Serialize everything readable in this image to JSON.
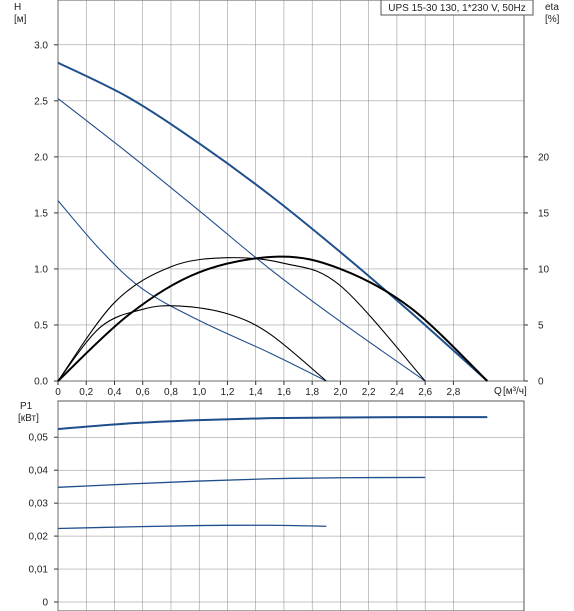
{
  "chart_data": [
    {
      "type": "line",
      "title": "UPS 15-30 130, 1*230 V, 50Hz",
      "ylabel": "H",
      "yunit": "[м]",
      "y2label": "eta",
      "y2unit": "[%]",
      "xlabel": "Q",
      "xunit": "[м³/ч]",
      "xlim": [
        0,
        3.3
      ],
      "ylim": [
        0,
        3.4
      ],
      "y2lim": [
        0,
        34
      ],
      "grid": true,
      "x_ticks": [
        "0",
        "0,2",
        "0,4",
        "0,6",
        "0,8",
        "1,0",
        "1,2",
        "1,4",
        "1,6",
        "1,8",
        "2,0",
        "2,2",
        "2,4",
        "2,6",
        "2,8"
      ],
      "y_ticks": [
        "0.0",
        "0.5",
        "1.0",
        "1.5",
        "2.0",
        "2.5",
        "3.0"
      ],
      "y2_ticks": [
        "0",
        "5",
        "10",
        "15",
        "20"
      ],
      "head_curves": [
        {
          "speed": 3,
          "x": [
            0,
            0.5,
            1.0,
            1.5,
            2.0,
            2.5,
            3.04
          ],
          "y": [
            2.84,
            2.53,
            2.12,
            1.66,
            1.15,
            0.61,
            0.0
          ]
        },
        {
          "speed": 2,
          "x": [
            0,
            0.5,
            1.0,
            1.5,
            2.0,
            2.6
          ],
          "y": [
            2.52,
            2.03,
            1.52,
            1.0,
            0.53,
            0.0
          ]
        },
        {
          "speed": 1,
          "x": [
            0,
            0.3,
            0.6,
            1.0,
            1.5,
            1.9
          ],
          "y": [
            1.61,
            1.17,
            0.82,
            0.54,
            0.25,
            0.0
          ]
        }
      ],
      "eta_curves": [
        {
          "speed": 3,
          "x": [
            0,
            0.5,
            1.0,
            1.56,
            2.0,
            2.5,
            3.04
          ],
          "y": [
            0,
            5.9,
            9.7,
            11.1,
            10.0,
            6.5,
            0
          ]
        },
        {
          "speed": 2,
          "x": [
            0,
            0.4,
            0.8,
            1.2,
            1.6,
            2.0,
            2.6
          ],
          "y": [
            0,
            7.0,
            10.2,
            11.0,
            10.5,
            8.5,
            0
          ]
        },
        {
          "speed": 1,
          "x": [
            0,
            0.3,
            0.6,
            0.85,
            1.2,
            1.5,
            1.9
          ],
          "y": [
            0,
            4.8,
            6.4,
            6.7,
            6.0,
            4.2,
            0
          ]
        }
      ]
    },
    {
      "type": "line",
      "ylabel": "P1",
      "yunit": "[кВт]",
      "xlim": [
        0,
        3.3
      ],
      "ylim": [
        0,
        0.061
      ],
      "grid": true,
      "y_ticks": [
        "0",
        "0,01",
        "0,02",
        "0,03",
        "0,04",
        "0,05"
      ],
      "series": [
        {
          "speed": 3,
          "x": [
            0,
            0.5,
            1.0,
            1.5,
            2.0,
            2.5,
            3.04
          ],
          "y": [
            0.0525,
            0.0542,
            0.0552,
            0.0558,
            0.056,
            0.0561,
            0.0561
          ]
        },
        {
          "speed": 2,
          "x": [
            0,
            0.5,
            1.0,
            1.5,
            2.0,
            2.6
          ],
          "y": [
            0.0348,
            0.0358,
            0.0367,
            0.0374,
            0.0377,
            0.0378
          ]
        },
        {
          "speed": 1,
          "x": [
            0,
            0.5,
            1.0,
            1.5,
            1.9
          ],
          "y": [
            0.0223,
            0.0228,
            0.0232,
            0.0233,
            0.023
          ]
        }
      ]
    }
  ],
  "colors": {
    "head": "#1f4e8c",
    "eta": "#000000",
    "power": "#1f4e8c",
    "grid": "#888888"
  }
}
